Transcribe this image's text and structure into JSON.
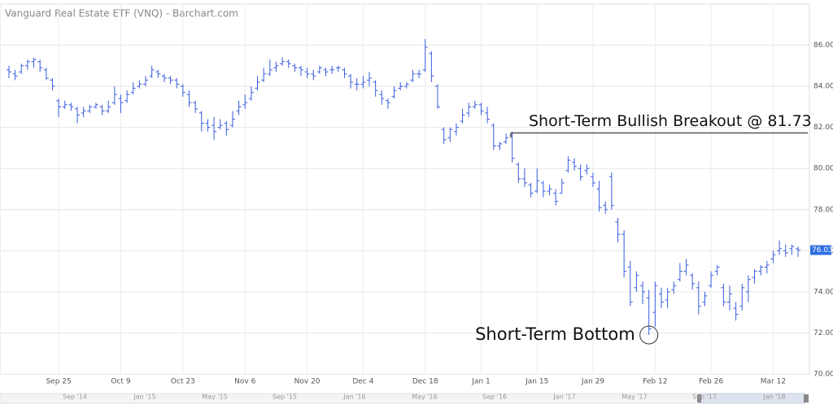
{
  "chart_data": {
    "type": "ohlc",
    "title": "Vanguard Real Estate ETF (VNQ) - Barchart.com",
    "color": "#3a5ce0",
    "grid": true,
    "categories": [
      null,
      null,
      null,
      null,
      null,
      null,
      null,
      null,
      "Sep 25",
      null,
      null,
      null,
      null,
      null,
      null,
      null,
      null,
      null,
      "Oct 9",
      null,
      null,
      null,
      null,
      null,
      null,
      null,
      null,
      null,
      "Oct 23",
      null,
      null,
      null,
      null,
      null,
      null,
      null,
      null,
      null,
      "Nov 6",
      null,
      null,
      null,
      null,
      null,
      null,
      null,
      null,
      null,
      "Nov 20",
      null,
      null,
      null,
      null,
      null,
      null,
      null,
      null,
      "Dec 4",
      null,
      null,
      null,
      null,
      null,
      null,
      null,
      null,
      null,
      "Dec 18",
      null,
      null,
      null,
      null,
      null,
      null,
      null,
      null,
      "Jan 1",
      null,
      null,
      null,
      null,
      null,
      null,
      null,
      null,
      "Jan 15",
      null,
      null,
      null,
      null,
      null,
      null,
      null,
      null,
      "Jan 29",
      null,
      null,
      null,
      null,
      null,
      null,
      null,
      null,
      null,
      "Feb 12",
      null,
      null,
      null,
      null,
      null,
      null,
      null,
      null,
      "Feb 26",
      null,
      null,
      null,
      null,
      null,
      null,
      null,
      null,
      null,
      "Mar 12",
      null,
      null,
      null,
      null
    ],
    "open": [
      84.8,
      84.6,
      84.7,
      85.0,
      85.2,
      85.2,
      84.8,
      84.3,
      83.3,
      83.0,
      83.1,
      82.9,
      82.7,
      82.8,
      83.0,
      83.0,
      82.8,
      83.2,
      83.4,
      83.3,
      83.7,
      84.0,
      84.1,
      84.5,
      84.7,
      84.5,
      84.4,
      84.3,
      84.0,
      83.6,
      83.2,
      82.7,
      82.2,
      82.1,
      82.0,
      82.2,
      82.1,
      82.8,
      83.1,
      83.4,
      83.9,
      84.3,
      84.6,
      84.9,
      85.1,
      85.2,
      85.0,
      84.9,
      84.7,
      84.6,
      84.7,
      84.8,
      84.8,
      84.9,
      84.8,
      84.5,
      84.1,
      84.1,
      84.3,
      84.2,
      83.6,
      83.3,
      83.5,
      83.9,
      84.0,
      84.3,
      84.6,
      84.8,
      85.6,
      84.0,
      81.9,
      81.5,
      81.8,
      82.3,
      82.7,
      83.0,
      83.1,
      82.7,
      82.1,
      81.1,
      81.3,
      81.6,
      80.2,
      79.5,
      79.2,
      78.9,
      79.3,
      78.9,
      78.8,
      78.8,
      79.9,
      80.3,
      80.0,
      79.9,
      79.6,
      79.0,
      78.2,
      79.6,
      77.4,
      76.8,
      75.2,
      74.2,
      74.3,
      73.7,
      73.0,
      73.9,
      73.6,
      74.1,
      74.6,
      75.0,
      74.8,
      74.2,
      73.5,
      74.3,
      75.0,
      74.2,
      73.5,
      73.2,
      73.3,
      74.0,
      74.7,
      75.0,
      75.2,
      75.6,
      76.0,
      76.0,
      76.1,
      76.1
    ],
    "high": [
      85.0,
      84.8,
      85.1,
      85.3,
      85.4,
      85.3,
      84.9,
      84.4,
      83.4,
      83.3,
      83.2,
      83.0,
      83.0,
      83.1,
      83.2,
      83.1,
      83.3,
      84.0,
      83.6,
      83.8,
      84.2,
      84.3,
      84.5,
      85.0,
      84.8,
      84.6,
      84.5,
      84.4,
      84.1,
      83.8,
      83.3,
      82.8,
      82.4,
      82.5,
      82.4,
      82.3,
      82.8,
      83.3,
      83.6,
      84.0,
      84.5,
      84.9,
      85.3,
      85.2,
      85.4,
      85.3,
      85.1,
      85.0,
      84.9,
      84.8,
      85.0,
      84.9,
      85.0,
      85.0,
      84.9,
      84.6,
      84.4,
      84.5,
      84.7,
      84.3,
      83.8,
      83.4,
      84.0,
      84.2,
      84.2,
      84.8,
      84.8,
      86.3,
      85.7,
      84.1,
      82.0,
      82.0,
      82.2,
      82.9,
      83.2,
      83.3,
      83.2,
      83.0,
      82.2,
      81.3,
      81.7,
      81.8,
      80.3,
      80.0,
      79.3,
      80.0,
      79.4,
      79.2,
      79.0,
      79.5,
      80.6,
      80.5,
      80.2,
      80.2,
      79.8,
      79.4,
      78.4,
      79.8,
      77.6,
      77.0,
      75.5,
      75.0,
      74.5,
      74.1,
      74.5,
      74.2,
      74.2,
      74.5,
      75.4,
      75.6,
      74.9,
      74.5,
      74.0,
      75.0,
      75.3,
      74.4,
      74.3,
      73.5,
      74.4,
      74.8,
      75.1,
      75.3,
      75.5,
      76.0,
      76.5,
      76.3,
      76.3,
      76.2
    ],
    "low": [
      84.4,
      84.3,
      84.6,
      84.8,
      84.9,
      84.7,
      84.3,
      83.8,
      82.5,
      82.9,
      82.8,
      82.2,
      82.5,
      82.7,
      82.9,
      82.6,
      82.7,
      83.1,
      82.7,
      83.2,
      83.6,
      83.9,
      84.0,
      84.4,
      84.4,
      84.2,
      84.1,
      83.9,
      83.5,
      83.0,
      82.7,
      81.8,
      81.8,
      81.4,
      81.9,
      81.6,
      82.0,
      82.6,
      82.9,
      83.3,
      83.8,
      84.2,
      84.5,
      84.7,
      85.0,
      84.9,
      84.7,
      84.5,
      84.4,
      84.3,
      84.6,
      84.5,
      84.6,
      84.7,
      84.4,
      83.9,
      83.8,
      83.9,
      84.0,
      83.5,
      83.1,
      82.9,
      83.4,
      83.8,
      83.9,
      84.2,
      84.4,
      84.7,
      84.2,
      82.9,
      81.2,
      81.3,
      81.6,
      82.2,
      82.5,
      82.9,
      82.6,
      82.2,
      80.9,
      80.9,
      81.2,
      80.3,
      79.3,
      79.1,
      78.6,
      78.8,
      78.6,
      78.7,
      78.2,
      78.8,
      79.8,
      79.9,
      79.4,
      79.7,
      79.1,
      77.9,
      77.8,
      78.0,
      76.4,
      74.7,
      73.3,
      74.0,
      73.4,
      71.9,
      72.3,
      73.2,
      73.2,
      73.9,
      74.5,
      74.8,
      74.1,
      72.9,
      73.3,
      74.2,
      74.8,
      73.3,
      73.1,
      72.6,
      73.1,
      73.5,
      74.4,
      74.8,
      74.9,
      75.4,
      75.8,
      75.7,
      75.8,
      75.7
    ],
    "close": [
      84.7,
      84.5,
      85.0,
      85.2,
      85.3,
      84.9,
      84.4,
      84.0,
      83.0,
      83.1,
      83.0,
      82.6,
      82.8,
      83.0,
      83.1,
      82.8,
      83.0,
      83.6,
      83.2,
      83.6,
      83.9,
      84.1,
      84.3,
      84.8,
      84.6,
      84.4,
      84.3,
      84.1,
      83.7,
      83.2,
      82.9,
      82.2,
      82.0,
      81.8,
      82.1,
      81.9,
      82.4,
      83.0,
      83.2,
      83.7,
      84.2,
      84.6,
      84.8,
      85.0,
      85.2,
      85.1,
      84.9,
      84.8,
      84.6,
      84.5,
      84.9,
      84.7,
      84.8,
      84.9,
      84.6,
      84.2,
      84.1,
      84.2,
      84.4,
      83.8,
      83.4,
      83.2,
      83.8,
      84.0,
      84.1,
      84.6,
      84.6,
      85.9,
      84.5,
      83.0,
      81.4,
      81.9,
      82.0,
      82.6,
      83.0,
      83.1,
      82.8,
      82.4,
      81.1,
      81.2,
      81.5,
      80.5,
      79.5,
      79.3,
      78.8,
      79.4,
      78.9,
      79.0,
      78.4,
      79.3,
      80.4,
      80.1,
      79.6,
      80.0,
      79.3,
      78.1,
      78.0,
      78.2,
      76.8,
      75.0,
      73.5,
      74.8,
      74.0,
      72.2,
      74.3,
      73.5,
      74.0,
      74.3,
      75.0,
      75.3,
      74.4,
      73.3,
      73.8,
      74.8,
      75.2,
      73.5,
      73.9,
      72.9,
      74.2,
      74.6,
      75.0,
      75.2,
      75.3,
      75.8,
      76.1,
      75.9,
      76.2,
      76.03
    ],
    "ylim": [
      70,
      88
    ],
    "yticks": [
      {
        "value": 70,
        "label": "70.00"
      },
      {
        "value": 72,
        "label": "72.00"
      },
      {
        "value": 74,
        "label": "74.00"
      },
      {
        "value": 76,
        "label": "76.00"
      },
      {
        "value": 78,
        "label": "78.00"
      },
      {
        "value": 80,
        "label": "80.00"
      },
      {
        "value": 82,
        "label": "82.00"
      },
      {
        "value": 84,
        "label": "84.00"
      },
      {
        "value": 86,
        "label": "86.00"
      }
    ],
    "breakout_level": 81.73,
    "annotations": [
      "Short-Term Bullish Breakout @ 81.73",
      "Short-Term Bottom"
    ],
    "navigator_labels": [
      "Sep '14",
      "Jan '15",
      "May '15",
      "Sep '15",
      "Jan '16",
      "May '16",
      "Sep '16",
      "Jan '17",
      "May '17",
      "Sep '17",
      "Jan '18"
    ]
  }
}
